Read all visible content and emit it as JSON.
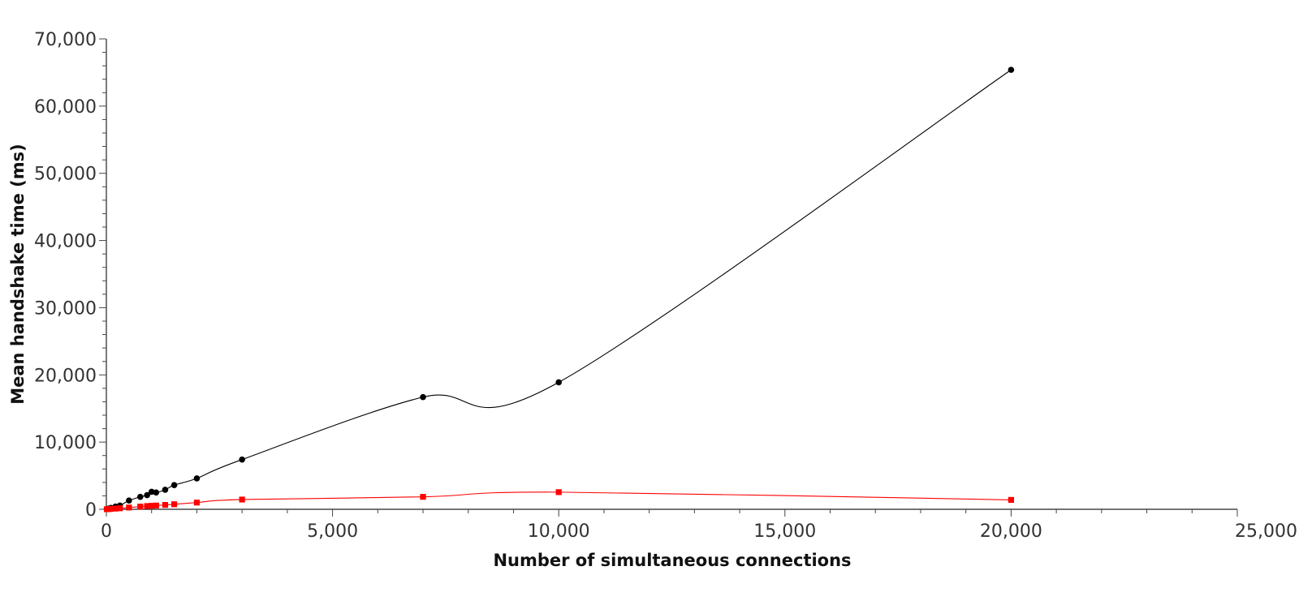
{
  "chart_data": {
    "type": "line",
    "title": "",
    "xlabel": "Number of simultaneous connections",
    "ylabel": "Mean handshake time (ms)",
    "xlim": [
      0,
      25000
    ],
    "ylim": [
      0,
      70000
    ],
    "x_ticks": [
      0,
      5000,
      10000,
      15000,
      20000,
      25000
    ],
    "x_tick_labels": [
      "0",
      "5,000",
      "10,000",
      "15,000",
      "20,000",
      "25,000"
    ],
    "y_ticks": [
      0,
      10000,
      20000,
      30000,
      40000,
      50000,
      60000,
      70000
    ],
    "y_tick_labels": [
      "0",
      "10,000",
      "20,000",
      "30,000",
      "40,000",
      "50,000",
      "60,000",
      "70,000"
    ],
    "grid": false,
    "legend": "none",
    "series": [
      {
        "color": "#000000",
        "marker": "circle",
        "points": [
          [
            10,
            30
          ],
          [
            50,
            100
          ],
          [
            100,
            200
          ],
          [
            200,
            400
          ],
          [
            300,
            550
          ],
          [
            500,
            1300
          ],
          [
            750,
            1850
          ],
          [
            900,
            2100
          ],
          [
            1000,
            2600
          ],
          [
            1100,
            2500
          ],
          [
            1300,
            2900
          ],
          [
            1500,
            3600
          ],
          [
            2000,
            4600
          ],
          [
            3000,
            7400
          ],
          [
            7000,
            16700
          ],
          [
            10000,
            18900
          ],
          [
            20000,
            65400
          ]
        ]
      },
      {
        "color": "#ff0000",
        "marker": "square",
        "points": [
          [
            10,
            10
          ],
          [
            50,
            30
          ],
          [
            100,
            60
          ],
          [
            200,
            100
          ],
          [
            300,
            150
          ],
          [
            500,
            260
          ],
          [
            750,
            400
          ],
          [
            900,
            480
          ],
          [
            1000,
            520
          ],
          [
            1100,
            560
          ],
          [
            1300,
            650
          ],
          [
            1500,
            750
          ],
          [
            2000,
            1000
          ],
          [
            3000,
            1450
          ],
          [
            7000,
            1850
          ],
          [
            10000,
            2550
          ],
          [
            20000,
            1400
          ]
        ]
      }
    ]
  }
}
